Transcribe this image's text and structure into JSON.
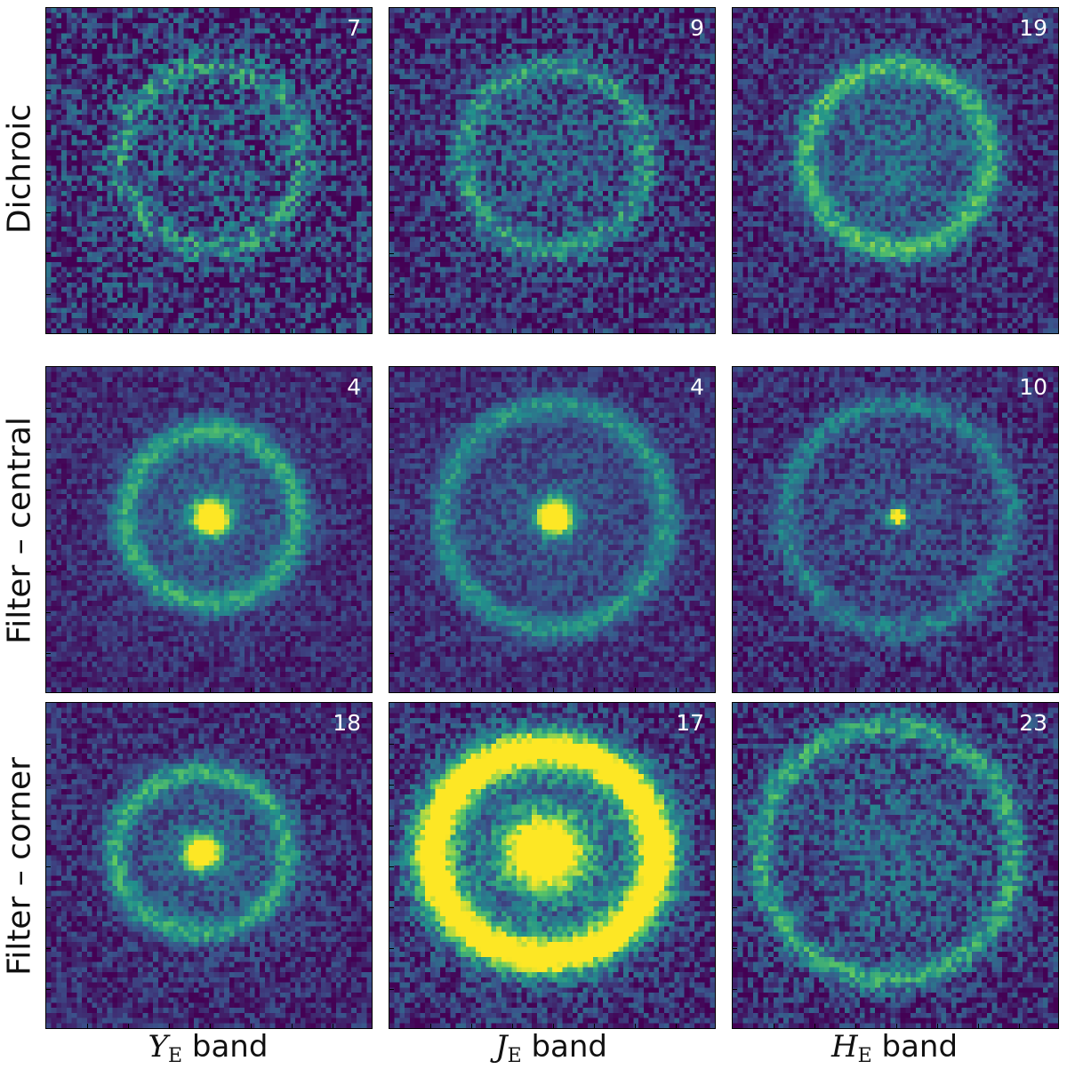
{
  "row_labels": [
    "Dichroic",
    "Filter – central",
    "Filter – corner"
  ],
  "col_labels": [
    {
      "symbol": "Y",
      "subscript": "E",
      "word": "band"
    },
    {
      "symbol": "J",
      "subscript": "E",
      "word": "band"
    },
    {
      "symbol": "H",
      "subscript": "E",
      "word": "band"
    }
  ],
  "panels": [
    {
      "row": 0,
      "col": 0,
      "count": "7",
      "pattern": "ring",
      "intensity": 0.55,
      "noise": 0.55
    },
    {
      "row": 0,
      "col": 1,
      "count": "9",
      "pattern": "ring",
      "intensity": 0.6,
      "noise": 0.45
    },
    {
      "row": 0,
      "col": 2,
      "count": "19",
      "pattern": "ring",
      "intensity": 0.85,
      "noise": 0.35
    },
    {
      "row": 1,
      "col": 0,
      "count": "4",
      "pattern": "ring-core",
      "intensity": 0.75,
      "noise": 0.25
    },
    {
      "row": 1,
      "col": 1,
      "count": "4",
      "pattern": "ring-core",
      "intensity": 0.6,
      "noise": 0.25
    },
    {
      "row": 1,
      "col": 2,
      "count": "10",
      "pattern": "ring-core",
      "intensity": 0.45,
      "noise": 0.3
    },
    {
      "row": 2,
      "col": 0,
      "count": "18",
      "pattern": "ring-core",
      "intensity": 0.75,
      "noise": 0.3
    },
    {
      "row": 2,
      "col": 1,
      "count": "17",
      "pattern": "ring-core",
      "intensity": 1.0,
      "noise": 0.4
    },
    {
      "row": 2,
      "col": 2,
      "count": "23",
      "pattern": "ring",
      "intensity": 0.7,
      "noise": 0.4
    }
  ],
  "colormap": [
    "#440154",
    "#3b528b",
    "#21918c",
    "#5ec962",
    "#fde725"
  ]
}
